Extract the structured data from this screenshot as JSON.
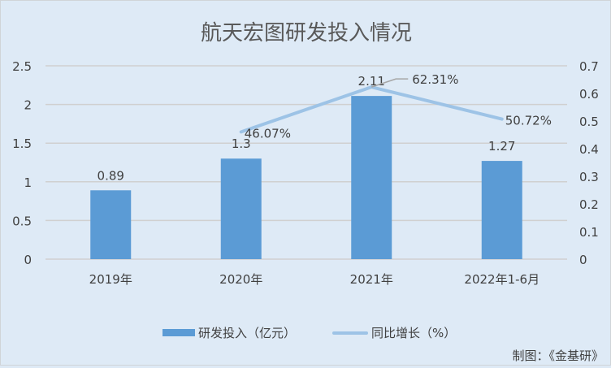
{
  "chart_data": {
    "type": "bar+line",
    "title": "航天宏图研发投入情况",
    "categories": [
      "2019年",
      "2020年",
      "2021年",
      "2022年1-6月"
    ],
    "series": [
      {
        "name": "研发投入（亿元）",
        "type": "bar",
        "axis": "left",
        "values": [
          0.89,
          1.3,
          2.11,
          1.27
        ],
        "labels": [
          "0.89",
          "1.3",
          "2.11",
          "1.27"
        ],
        "color": "#5b9bd5"
      },
      {
        "name": "同比增长（%）",
        "type": "line",
        "axis": "right",
        "values": [
          null,
          0.4607,
          0.6231,
          0.5072
        ],
        "labels": [
          "",
          "46.07%",
          "62.31%",
          "50.72%"
        ],
        "color": "#9dc3e6"
      }
    ],
    "left_axis": {
      "range": [
        0,
        2.5
      ],
      "ticks": [
        "0",
        "0.5",
        "1",
        "1.5",
        "2",
        "2.5"
      ]
    },
    "right_axis": {
      "range": [
        0,
        0.7
      ],
      "ticks": [
        "0",
        "0.1",
        "0.2",
        "0.3",
        "0.4",
        "0.5",
        "0.6",
        "0.7"
      ]
    },
    "grid": true,
    "legend_position": "bottom"
  },
  "source_note": "制图：《金基研》"
}
